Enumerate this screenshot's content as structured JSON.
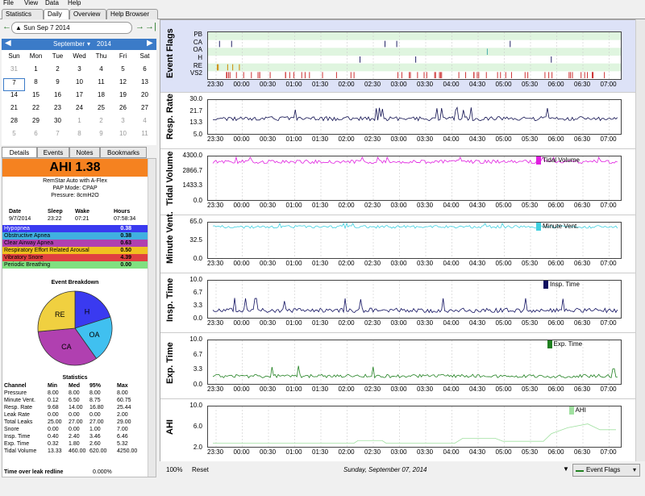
{
  "menu": [
    "File",
    "View",
    "Data",
    "Help"
  ],
  "tabs": [
    "Statistics",
    "Daily",
    "Overview",
    "Help Browser"
  ],
  "date_display": "Sun Sep 7 2014",
  "calendar": {
    "month": "September",
    "year": "2014",
    "weekdays": [
      "Sun",
      "Mon",
      "Tue",
      "Wed",
      "Thu",
      "Fri",
      "Sat"
    ],
    "days": [
      [
        "31",
        "1",
        "2",
        "3",
        "4",
        "5",
        "6"
      ],
      [
        "7",
        "8",
        "9",
        "10",
        "11",
        "12",
        "13"
      ],
      [
        "14",
        "15",
        "16",
        "17",
        "18",
        "19",
        "20"
      ],
      [
        "21",
        "22",
        "23",
        "24",
        "25",
        "26",
        "27"
      ],
      [
        "28",
        "29",
        "30",
        "1",
        "2",
        "3",
        "4"
      ],
      [
        "5",
        "6",
        "7",
        "8",
        "9",
        "10",
        "11"
      ]
    ]
  },
  "side_tabs": [
    "Details",
    "Events",
    "Notes",
    "Bookmarks"
  ],
  "ahi": "AHI 1.38",
  "machine": "RemStar Auto with A-Flex",
  "pap_mode": "PAP Mode: CPAP",
  "pressure": "Pressure: 8cmH2O",
  "summary": {
    "headers": [
      "Date",
      "Sleep",
      "Wake",
      "Hours"
    ],
    "values": [
      "9/7/2014",
      "23:22",
      "07:21",
      "07:58:34"
    ]
  },
  "events": [
    {
      "name": "Hypopnea",
      "value": "0.38",
      "color": "#3a3af0",
      "text": "#fff"
    },
    {
      "name": "Obstructive Apnea",
      "value": "0.38",
      "color": "#40b0e0",
      "text": "#000"
    },
    {
      "name": "Clear Airway Apnea",
      "value": "0.63",
      "color": "#b040b0",
      "text": "#000"
    },
    {
      "name": "Respiratory Effort Related Arousal",
      "value": "0.50",
      "color": "#f0c020",
      "text": "#000"
    },
    {
      "name": "Vibratory Snore",
      "value": "4.39",
      "color": "#e04040",
      "text": "#000"
    },
    {
      "name": "Periodic Breathing",
      "value": "0.00",
      "color": "#80e080",
      "text": "#000"
    }
  ],
  "breakdown": {
    "title": "Event Breakdown",
    "slices": [
      {
        "label": "H",
        "value": 0.38,
        "color": "#3a3af0"
      },
      {
        "label": "OA",
        "value": 0.38,
        "color": "#40c0f0"
      },
      {
        "label": "CA",
        "value": 0.63,
        "color": "#b040b0"
      },
      {
        "label": "RE",
        "value": 0.5,
        "color": "#f0d040"
      }
    ]
  },
  "stats": {
    "title": "Statistics",
    "headers": [
      "Channel",
      "Min",
      "Med",
      "95%",
      "Max"
    ],
    "rows": [
      [
        "Pressure",
        "8.00",
        "8.00",
        "8.00",
        "8.00"
      ],
      [
        "Minute Vent.",
        "0.12",
        "6.50",
        "8.75",
        "60.75"
      ],
      [
        "Resp. Rate",
        "9.68",
        "14.00",
        "16.80",
        "25.44"
      ],
      [
        "Leak Rate",
        "0.00",
        "0.00",
        "0.00",
        "2.00"
      ],
      [
        "Total Leaks",
        "25.00",
        "27.00",
        "27.00",
        "29.00"
      ],
      [
        "Snore",
        "0.00",
        "0.00",
        "1.00",
        "7.00"
      ],
      [
        "Insp. Time",
        "0.40",
        "2.40",
        "3.46",
        "6.46"
      ],
      [
        "Exp. Time",
        "0.32",
        "1.80",
        "2.60",
        "5.32"
      ],
      [
        "Tidal Volume",
        "13.33",
        "460.00",
        "620.00",
        "4250.00"
      ]
    ]
  },
  "redline": {
    "label": "Time over leak redline",
    "value": "0.000%"
  },
  "x_ticks": [
    "23:30",
    "00:00",
    "00:30",
    "01:00",
    "01:30",
    "02:00",
    "02:30",
    "03:00",
    "03:30",
    "04:00",
    "04:30",
    "05:00",
    "05:30",
    "06:00",
    "06:30",
    "07:00"
  ],
  "graphs": [
    {
      "title": "Event Flags",
      "flags": [
        "PB",
        "CA",
        "OA",
        "H",
        "RE",
        "VS2"
      ]
    },
    {
      "title": "Resp. Rate",
      "yticks": [
        "30.0",
        "21.7",
        "13.3",
        "5.0"
      ],
      "color": "#101050",
      "legend": ""
    },
    {
      "title": "Tidal Volume",
      "yticks": [
        "4300.0",
        "2866.7",
        "1433.3",
        "0.0"
      ],
      "color": "#e020e0",
      "legend": "Tidal Volume"
    },
    {
      "title": "Minute Vent.",
      "yticks": [
        "65.0",
        "32.5",
        "0.0"
      ],
      "color": "#40d0e0",
      "legend": "Minute Vent."
    },
    {
      "title": "Insp. Time",
      "yticks": [
        "10.0",
        "6.7",
        "3.3",
        "0.0"
      ],
      "color": "#101060",
      "legend": "Insp. Time"
    },
    {
      "title": "Exp. Time",
      "yticks": [
        "10.0",
        "6.7",
        "3.3",
        "0.0"
      ],
      "color": "#208020",
      "legend": "Exp. Time"
    },
    {
      "title": "AHI",
      "yticks": [
        "10.0",
        "6.0",
        "2.0"
      ],
      "color": "#a0e0a0",
      "legend": "AHI"
    }
  ],
  "footer": {
    "zoom": "100%",
    "reset": "Reset",
    "date": "Sunday, September 07, 2014",
    "dropdown": "Event Flags"
  }
}
